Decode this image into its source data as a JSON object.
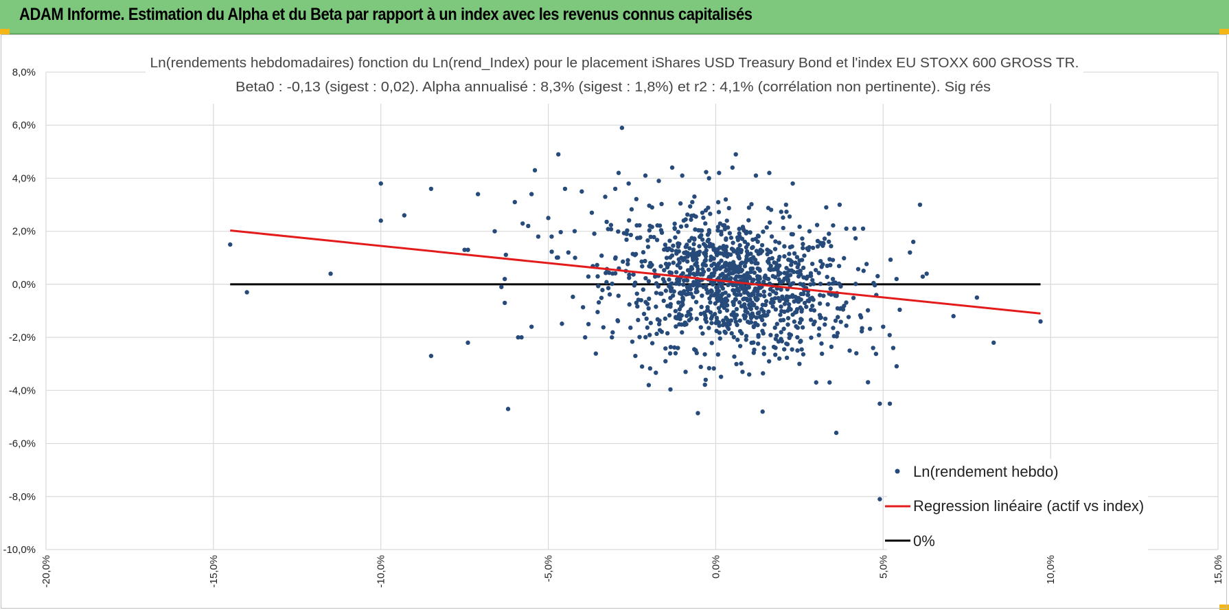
{
  "header": {
    "title": "ADAM Informe. Estimation du Alpha et du Beta par rapport à un index avec les revenus connus capitalisés"
  },
  "colors": {
    "banner": "#7dc87d",
    "points": "#264a7a",
    "regression": "#e31b1b",
    "zero_line": "#000000",
    "corner_accent": "#f2b619"
  },
  "chart_data": {
    "type": "scatter",
    "title": "Ln(rendements hebdomadaires) fonction du Ln(rend_Index) pour le placement iShares USD Treasury Bond et l'index EU STOXX 600 GROSS TR.",
    "subtitle": "Beta0 : -0,13 (sigest : 0,02).  Alpha annualisé : 8,3% (sigest : 1,8%) et r2 : 4,1% (corrélation non pertinente). Sig rés",
    "xlim": [
      -0.2,
      0.15
    ],
    "ylim": [
      -0.1,
      0.08
    ],
    "x_ticks": [
      "-20,0%",
      "-15,0%",
      "-10,0%",
      "-5,0%",
      "0,0%",
      "5,0%",
      "10,0%",
      "15,0%"
    ],
    "x_tick_values": [
      -0.2,
      -0.15,
      -0.1,
      -0.05,
      0.0,
      0.05,
      0.1,
      0.15
    ],
    "y_ticks": [
      "8,0%",
      "6,0%",
      "4,0%",
      "2,0%",
      "0,0%",
      "-2,0%",
      "-4,0%",
      "-6,0%",
      "-8,0%",
      "-10,0%"
    ],
    "y_tick_values": [
      0.08,
      0.06,
      0.04,
      0.02,
      0.0,
      -0.02,
      -0.04,
      -0.06,
      -0.08,
      -0.1
    ],
    "grid": true,
    "legend_position": "bottom-right",
    "series": [
      {
        "name": "Ln(rendement hebdo)",
        "type": "scatter",
        "points": [
          [
            -0.145,
            0.015
          ],
          [
            -0.14,
            -0.003
          ],
          [
            -0.115,
            0.004
          ],
          [
            -0.1,
            0.038
          ],
          [
            -0.1,
            0.024
          ],
          [
            -0.093,
            0.026
          ],
          [
            -0.085,
            0.036
          ],
          [
            -0.085,
            -0.027
          ],
          [
            -0.075,
            0.013
          ],
          [
            -0.074,
            0.013
          ],
          [
            -0.074,
            -0.022
          ],
          [
            -0.071,
            0.034
          ],
          [
            -0.066,
            0.02
          ],
          [
            -0.064,
            -0.001
          ],
          [
            -0.063,
            -0.007
          ],
          [
            -0.063,
            0.002
          ],
          [
            -0.062,
            -0.047
          ],
          [
            -0.06,
            0.031
          ],
          [
            -0.059,
            -0.02
          ],
          [
            -0.058,
            -0.02
          ],
          [
            -0.056,
            0.022
          ],
          [
            -0.055,
            -0.016
          ],
          [
            -0.055,
            0.034
          ],
          [
            -0.054,
            0.043
          ],
          [
            -0.053,
            0.018
          ],
          [
            -0.05,
            0.025
          ],
          [
            -0.049,
            0.018
          ],
          [
            -0.047,
            0.049
          ],
          [
            -0.045,
            0.036
          ],
          [
            -0.044,
            0.012
          ],
          [
            -0.042,
            0.01
          ],
          [
            -0.04,
            0.035
          ],
          [
            -0.039,
            -0.02
          ],
          [
            -0.038,
            -0.015
          ],
          [
            -0.037,
            0.027
          ],
          [
            -0.033,
            0.033
          ],
          [
            -0.031,
            -0.02
          ],
          [
            -0.03,
            0.036
          ],
          [
            -0.029,
            0.042
          ],
          [
            -0.028,
            0.059
          ],
          [
            -0.026,
            0.038
          ],
          [
            -0.024,
            -0.027
          ],
          [
            -0.022,
            -0.031
          ],
          [
            -0.021,
            0.041
          ],
          [
            -0.02,
            -0.038
          ],
          [
            -0.019,
            0.029
          ],
          [
            -0.017,
            0.039
          ],
          [
            -0.015,
            -0.029
          ],
          [
            -0.013,
            0.044
          ],
          [
            -0.012,
            -0.026
          ],
          [
            -0.01,
            0.041
          ],
          [
            -0.009,
            -0.033
          ],
          [
            -0.007,
            0.031
          ],
          [
            -0.004,
            0.027
          ],
          [
            -0.003,
            -0.036
          ],
          [
            -0.002,
            0.04
          ],
          [
            0.001,
            0.042
          ],
          [
            0.003,
            0.032
          ],
          [
            0.005,
            0.044
          ],
          [
            0.006,
            0.049
          ],
          [
            0.008,
            -0.033
          ],
          [
            0.01,
            -0.034
          ],
          [
            0.012,
            0.041
          ],
          [
            0.014,
            -0.048
          ],
          [
            0.016,
            0.042
          ],
          [
            0.019,
            -0.028
          ],
          [
            0.021,
            0.03
          ],
          [
            0.023,
            0.038
          ],
          [
            0.025,
            -0.03
          ],
          [
            0.028,
            0.02
          ],
          [
            0.03,
            -0.037
          ],
          [
            0.033,
            0.029
          ],
          [
            0.034,
            -0.037
          ],
          [
            0.036,
            -0.056
          ],
          [
            0.037,
            0.03
          ],
          [
            0.039,
            0.021
          ],
          [
            0.04,
            -0.025
          ],
          [
            0.042,
            -0.026
          ],
          [
            0.044,
            0.021
          ],
          [
            0.047,
            -0.024
          ],
          [
            0.049,
            -0.081
          ],
          [
            0.049,
            -0.045
          ],
          [
            0.05,
            -0.016
          ],
          [
            0.052,
            -0.045
          ],
          [
            0.053,
            -0.024
          ],
          [
            0.054,
            0.002
          ],
          [
            0.058,
            0.012
          ],
          [
            0.059,
            0.016
          ],
          [
            0.061,
            0.03
          ],
          [
            0.063,
            0.004
          ],
          [
            0.071,
            -0.012
          ],
          [
            0.078,
            -0.005
          ],
          [
            0.083,
            -0.022
          ],
          [
            0.097,
            -0.014
          ]
        ]
      },
      {
        "name": "Regression linéaire (actif vs index)",
        "type": "line",
        "points": [
          [
            -0.145,
            0.0203
          ],
          [
            0.097,
            -0.011
          ]
        ]
      },
      {
        "name": "0%",
        "type": "line",
        "points": [
          [
            -0.145,
            0.0
          ],
          [
            0.097,
            0.0
          ]
        ]
      }
    ]
  }
}
